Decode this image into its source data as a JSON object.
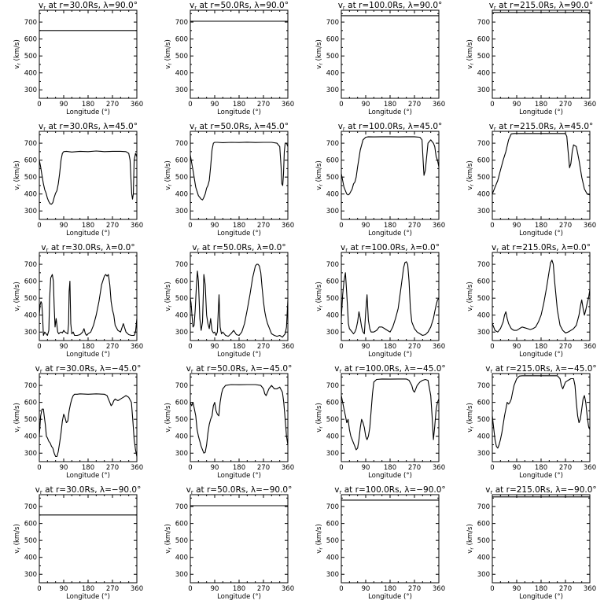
{
  "chart_data": {
    "type": "line",
    "layout_rows": 5,
    "layout_cols": 4,
    "shared": {
      "xlabel": "Longitude (°)",
      "ylabel": "v_r (km/s)",
      "xlim": [
        0,
        360
      ],
      "ylim": [
        250,
        770
      ],
      "xticks": [
        "0",
        "90",
        "180",
        "270",
        "360"
      ],
      "yticks": [
        "300",
        "400",
        "500",
        "600",
        "700"
      ],
      "grid": false,
      "line_color": "#000000"
    },
    "panels": [
      {
        "title": "vr at r=30.0Rs, λ=90.0°",
        "x": [
          0,
          360
        ],
        "y": [
          650,
          650
        ]
      },
      {
        "title": "vr at r=50.0Rs, λ=90.0°",
        "x": [
          0,
          360
        ],
        "y": [
          705,
          705
        ]
      },
      {
        "title": "vr at r=100.0Rs, λ=90.0°",
        "x": [
          0,
          360
        ],
        "y": [
          738,
          738
        ]
      },
      {
        "title": "vr at r=215.0Rs, λ=90.0°",
        "x": [
          0,
          360
        ],
        "y": [
          757,
          757
        ]
      },
      {
        "title": "vr at r=30.0Rs, λ=45.0°",
        "x": [
          0,
          5,
          10,
          15,
          20,
          25,
          30,
          35,
          40,
          45,
          50,
          55,
          60,
          65,
          70,
          75,
          80,
          85,
          90,
          100,
          120,
          150,
          180,
          210,
          240,
          270,
          300,
          320,
          330,
          335,
          338,
          341,
          344,
          347,
          350,
          355,
          360
        ],
        "y": [
          600,
          560,
          510,
          460,
          425,
          405,
          375,
          355,
          342,
          340,
          350,
          380,
          405,
          420,
          460,
          520,
          600,
          640,
          650,
          652,
          648,
          652,
          650,
          654,
          650,
          652,
          652,
          650,
          640,
          600,
          500,
          400,
          370,
          400,
          600,
          640,
          620
        ]
      },
      {
        "title": "vr at r=50.0Rs, λ=45.0°",
        "x": [
          0,
          10,
          20,
          30,
          40,
          45,
          50,
          55,
          60,
          65,
          70,
          75,
          80,
          85,
          90,
          100,
          120,
          150,
          180,
          210,
          240,
          270,
          300,
          320,
          330,
          335,
          338,
          341,
          344,
          347,
          350,
          355,
          360
        ],
        "y": [
          630,
          540,
          440,
          390,
          370,
          365,
          380,
          400,
          435,
          450,
          480,
          560,
          660,
          700,
          705,
          705,
          703,
          705,
          704,
          706,
          704,
          705,
          705,
          700,
          680,
          560,
          460,
          450,
          520,
          650,
          700,
          700,
          680
        ]
      },
      {
        "title": "vr at r=100.0Rs, λ=45.0°",
        "x": [
          0,
          10,
          20,
          25,
          30,
          40,
          45,
          50,
          55,
          60,
          70,
          80,
          90,
          100,
          120,
          150,
          180,
          210,
          240,
          270,
          290,
          298,
          302,
          305,
          310,
          315,
          320,
          330,
          340,
          345,
          350,
          355,
          360
        ],
        "y": [
          520,
          440,
          400,
          395,
          400,
          430,
          460,
          470,
          500,
          560,
          660,
          720,
          735,
          738,
          737,
          738,
          738,
          737,
          738,
          738,
          735,
          720,
          600,
          510,
          540,
          620,
          700,
          720,
          700,
          680,
          620,
          600,
          560
        ]
      },
      {
        "title": "vr at r=215.0Rs, λ=45.0°",
        "x": [
          0,
          10,
          20,
          30,
          40,
          50,
          60,
          70,
          80,
          90,
          120,
          150,
          180,
          210,
          240,
          270,
          275,
          280,
          285,
          290,
          295,
          300,
          310,
          320,
          330,
          340,
          350,
          360
        ],
        "y": [
          400,
          440,
          480,
          540,
          600,
          650,
          720,
          755,
          757,
          757,
          757,
          757,
          757,
          757,
          757,
          757,
          740,
          650,
          555,
          580,
          650,
          690,
          680,
          600,
          500,
          430,
          400,
          395
        ]
      },
      {
        "title": "vr at r=30.0Rs, λ=0.0°",
        "x": [
          0,
          3,
          6,
          9,
          12,
          15,
          20,
          25,
          30,
          35,
          38,
          42,
          48,
          52,
          55,
          58,
          62,
          65,
          68,
          72,
          75,
          80,
          85,
          90,
          95,
          100,
          105,
          108,
          110,
          113,
          116,
          120,
          125,
          130,
          140,
          150,
          160,
          165,
          170,
          175,
          180,
          190,
          200,
          210,
          220,
          230,
          240,
          245,
          250,
          255,
          260,
          265,
          270,
          275,
          280,
          290,
          300,
          310,
          320,
          330,
          340,
          350,
          355,
          360
        ],
        "y": [
          400,
          460,
          480,
          470,
          400,
          280,
          300,
          290,
          280,
          310,
          500,
          620,
          640,
          600,
          450,
          330,
          380,
          340,
          300,
          290,
          295,
          300,
          295,
          310,
          300,
          295,
          290,
          350,
          540,
          600,
          350,
          290,
          300,
          280,
          280,
          285,
          300,
          320,
          290,
          280,
          290,
          300,
          340,
          400,
          480,
          580,
          630,
          640,
          630,
          640,
          580,
          480,
          430,
          400,
          340,
          310,
          300,
          350,
          300,
          285,
          280,
          280,
          300,
          380
        ]
      },
      {
        "title": "vr at r=50.0Rs, λ=0.0°",
        "x": [
          0,
          3,
          6,
          10,
          14,
          18,
          22,
          26,
          30,
          35,
          40,
          45,
          50,
          55,
          60,
          65,
          70,
          75,
          80,
          85,
          90,
          95,
          100,
          103,
          106,
          110,
          115,
          120,
          130,
          140,
          150,
          160,
          170,
          180,
          190,
          200,
          210,
          220,
          230,
          240,
          245,
          250,
          255,
          260,
          265,
          270,
          275,
          280,
          285,
          290,
          300,
          310,
          320,
          330,
          340,
          350,
          355,
          360
        ],
        "y": [
          500,
          470,
          400,
          330,
          340,
          430,
          560,
          660,
          600,
          380,
          310,
          360,
          640,
          580,
          400,
          350,
          320,
          380,
          310,
          295,
          300,
          280,
          300,
          420,
          520,
          330,
          290,
          300,
          280,
          275,
          290,
          310,
          285,
          280,
          300,
          350,
          430,
          520,
          620,
          690,
          700,
          700,
          690,
          650,
          560,
          480,
          420,
          380,
          350,
          330,
          290,
          280,
          275,
          280,
          270,
          290,
          330,
          490
        ]
      },
      {
        "title": "vr at r=100.0Rs, λ=0.0°",
        "x": [
          0,
          5,
          10,
          15,
          18,
          22,
          26,
          30,
          35,
          40,
          45,
          50,
          55,
          60,
          65,
          70,
          75,
          80,
          85,
          90,
          95,
          100,
          105,
          110,
          120,
          130,
          140,
          150,
          160,
          170,
          180,
          190,
          200,
          210,
          220,
          230,
          235,
          240,
          245,
          250,
          255,
          260,
          270,
          280,
          290,
          300,
          310,
          320,
          330,
          340,
          345,
          350,
          355,
          360
        ],
        "y": [
          380,
          520,
          600,
          650,
          580,
          470,
          350,
          320,
          310,
          300,
          290,
          300,
          320,
          360,
          420,
          380,
          330,
          300,
          290,
          420,
          520,
          370,
          320,
          300,
          300,
          310,
          330,
          330,
          320,
          310,
          300,
          330,
          380,
          440,
          560,
          680,
          710,
          715,
          700,
          600,
          440,
          360,
          320,
          300,
          290,
          280,
          285,
          300,
          330,
          380,
          420,
          460,
          490,
          500
        ]
      },
      {
        "title": "vr at r=215.0Rs, λ=0.0°",
        "x": [
          0,
          10,
          20,
          30,
          40,
          45,
          50,
          55,
          60,
          70,
          80,
          90,
          100,
          110,
          120,
          130,
          140,
          150,
          160,
          170,
          180,
          190,
          200,
          210,
          215,
          220,
          225,
          230,
          240,
          250,
          260,
          270,
          280,
          290,
          300,
          310,
          320,
          325,
          330,
          335,
          340,
          345,
          350,
          355,
          360
        ],
        "y": [
          350,
          310,
          300,
          320,
          360,
          400,
          420,
          380,
          350,
          320,
          310,
          310,
          320,
          330,
          325,
          320,
          315,
          320,
          330,
          360,
          400,
          470,
          560,
          660,
          710,
          725,
          700,
          600,
          430,
          340,
          310,
          295,
          300,
          310,
          320,
          340,
          400,
          450,
          490,
          440,
          400,
          430,
          470,
          500,
          550
        ]
      },
      {
        "title": "vr at r=30.0Rs, λ=−45.0°",
        "x": [
          0,
          5,
          10,
          15,
          18,
          22,
          26,
          30,
          35,
          40,
          45,
          50,
          55,
          60,
          65,
          70,
          75,
          80,
          85,
          90,
          95,
          100,
          105,
          110,
          115,
          120,
          125,
          130,
          140,
          150,
          180,
          210,
          240,
          250,
          260,
          265,
          270,
          275,
          280,
          290,
          300,
          310,
          320,
          330,
          340,
          345,
          350,
          355,
          360
        ],
        "y": [
          400,
          520,
          560,
          560,
          520,
          470,
          400,
          390,
          370,
          360,
          340,
          330,
          300,
          280,
          280,
          310,
          360,
          420,
          490,
          530,
          510,
          480,
          490,
          550,
          590,
          620,
          640,
          648,
          648,
          650,
          648,
          650,
          648,
          640,
          600,
          580,
          590,
          610,
          620,
          610,
          620,
          630,
          640,
          630,
          600,
          500,
          380,
          320,
          280
        ]
      },
      {
        "title": "vr at r=50.0Rs, λ=−45.0°",
        "x": [
          0,
          5,
          10,
          15,
          20,
          25,
          30,
          35,
          40,
          45,
          50,
          55,
          60,
          65,
          70,
          75,
          80,
          85,
          90,
          95,
          100,
          105,
          110,
          115,
          120,
          130,
          150,
          180,
          210,
          240,
          260,
          270,
          275,
          280,
          290,
          300,
          310,
          320,
          330,
          340,
          345,
          350,
          355,
          360
        ],
        "y": [
          600,
          580,
          600,
          560,
          520,
          440,
          400,
          370,
          340,
          320,
          300,
          305,
          350,
          420,
          470,
          500,
          520,
          580,
          600,
          550,
          530,
          520,
          600,
          650,
          680,
          700,
          705,
          704,
          705,
          705,
          700,
          680,
          650,
          640,
          680,
          700,
          680,
          680,
          690,
          660,
          600,
          500,
          400,
          350
        ]
      },
      {
        "title": "vr at r=100.0Rs, λ=−45.0°",
        "x": [
          0,
          5,
          10,
          15,
          20,
          25,
          30,
          35,
          40,
          45,
          50,
          55,
          60,
          65,
          70,
          75,
          80,
          85,
          90,
          95,
          100,
          105,
          110,
          115,
          120,
          130,
          150,
          180,
          210,
          240,
          250,
          260,
          265,
          270,
          275,
          280,
          290,
          300,
          310,
          320,
          330,
          335,
          340,
          345,
          350,
          355,
          360
        ],
        "y": [
          640,
          600,
          560,
          520,
          480,
          500,
          440,
          400,
          380,
          360,
          340,
          320,
          330,
          380,
          450,
          500,
          480,
          450,
          400,
          380,
          400,
          450,
          550,
          650,
          720,
          735,
          738,
          737,
          738,
          738,
          730,
          700,
          670,
          660,
          680,
          700,
          720,
          730,
          735,
          730,
          640,
          520,
          380,
          460,
          560,
          600,
          620
        ]
      },
      {
        "title": "vr at r=215.0Rs, λ=−45.0°",
        "x": [
          0,
          5,
          10,
          15,
          20,
          25,
          30,
          35,
          40,
          45,
          50,
          55,
          60,
          65,
          70,
          75,
          80,
          90,
          100,
          110,
          120,
          150,
          180,
          210,
          240,
          250,
          255,
          260,
          265,
          270,
          280,
          290,
          300,
          305,
          310,
          315,
          320,
          325,
          330,
          335,
          340,
          345,
          350,
          355,
          360
        ],
        "y": [
          520,
          450,
          380,
          340,
          330,
          350,
          380,
          420,
          470,
          520,
          560,
          600,
          590,
          600,
          620,
          660,
          700,
          740,
          755,
          757,
          757,
          757,
          757,
          757,
          757,
          740,
          700,
          680,
          700,
          720,
          730,
          740,
          740,
          700,
          600,
          520,
          480,
          500,
          560,
          620,
          640,
          600,
          520,
          460,
          440
        ]
      },
      {
        "title": "vr at r=30.0Rs, λ=−90.0°",
        "x": [
          0,
          360
        ],
        "y": [
          650,
          650
        ]
      },
      {
        "title": "vr at r=50.0Rs, λ=−90.0°",
        "x": [
          0,
          360
        ],
        "y": [
          705,
          705
        ]
      },
      {
        "title": "vr at r=100.0Rs, λ=−90.0°",
        "x": [
          0,
          360
        ],
        "y": [
          738,
          738
        ]
      },
      {
        "title": "vr at r=215.0Rs, λ=−90.0°",
        "x": [
          0,
          360
        ],
        "y": [
          757,
          757
        ]
      }
    ]
  }
}
